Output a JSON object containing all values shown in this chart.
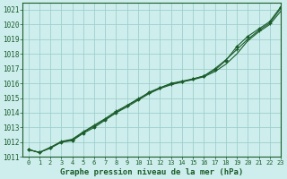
{
  "title": "Graphe pression niveau de la mer (hPa)",
  "bg_color": "#ceeeed",
  "grid_color": "#9ecfcc",
  "line_color": "#1a5c2a",
  "xlim": [
    -0.5,
    23
  ],
  "ylim": [
    1011,
    1021.5
  ],
  "yticks": [
    1011,
    1012,
    1013,
    1014,
    1015,
    1016,
    1017,
    1018,
    1019,
    1020,
    1021
  ],
  "xticks": [
    0,
    1,
    2,
    3,
    4,
    5,
    6,
    7,
    8,
    9,
    10,
    11,
    12,
    13,
    14,
    15,
    16,
    17,
    18,
    19,
    20,
    21,
    22,
    23
  ],
  "series1_x": [
    0,
    1,
    2,
    3,
    4,
    5,
    6,
    7,
    8,
    9,
    10,
    11,
    12,
    13,
    14,
    15,
    16,
    17,
    18,
    19,
    20,
    21,
    22,
    23
  ],
  "series1_y": [
    1011.5,
    1011.3,
    1011.6,
    1012.0,
    1012.15,
    1012.65,
    1013.1,
    1013.55,
    1014.0,
    1014.4,
    1014.85,
    1015.3,
    1015.65,
    1015.9,
    1016.1,
    1016.25,
    1016.45,
    1016.8,
    1017.3,
    1018.0,
    1018.9,
    1019.5,
    1020.0,
    1020.9
  ],
  "series2_x": [
    0,
    1,
    2,
    3,
    4,
    5,
    6,
    7,
    8,
    9,
    10,
    11,
    12,
    13,
    14,
    15,
    16,
    17,
    18,
    19,
    20,
    21,
    22,
    23
  ],
  "series2_y": [
    1011.5,
    1011.3,
    1011.6,
    1012.0,
    1012.1,
    1012.6,
    1013.0,
    1013.5,
    1014.0,
    1014.5,
    1014.9,
    1015.4,
    1015.7,
    1016.0,
    1016.15,
    1016.3,
    1016.5,
    1016.9,
    1017.55,
    1018.5,
    1019.2,
    1019.7,
    1020.2,
    1021.2
  ],
  "series3_x": [
    0,
    1,
    2,
    3,
    4,
    5,
    6,
    7,
    8,
    9,
    10,
    11,
    12,
    13,
    14,
    15,
    16,
    17,
    18,
    19,
    20,
    21,
    22,
    23
  ],
  "series3_y": [
    1011.5,
    1011.3,
    1011.65,
    1012.05,
    1012.2,
    1012.7,
    1013.15,
    1013.6,
    1014.1,
    1014.5,
    1014.95,
    1015.35,
    1015.7,
    1015.95,
    1016.1,
    1016.3,
    1016.5,
    1017.0,
    1017.6,
    1018.3,
    1019.0,
    1019.6,
    1020.1,
    1021.1
  ]
}
